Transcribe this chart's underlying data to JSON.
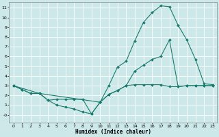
{
  "xlabel": "Humidex (Indice chaleur)",
  "bg_color": "#cce8e8",
  "line_color": "#1a7a6e",
  "grid_color": "#b0d8d8",
  "xlim": [
    -0.5,
    23.5
  ],
  "ylim": [
    -0.8,
    11.6
  ],
  "xticks": [
    0,
    1,
    2,
    3,
    4,
    5,
    6,
    7,
    8,
    9,
    10,
    11,
    12,
    13,
    14,
    15,
    16,
    17,
    18,
    19,
    20,
    21,
    22,
    23
  ],
  "yticks": [
    0,
    1,
    2,
    3,
    4,
    5,
    6,
    7,
    8,
    9,
    10,
    11
  ],
  "ytick_labels": [
    "-0",
    "1",
    "2",
    "3",
    "4",
    "5",
    "6",
    "7",
    "8",
    "9",
    "10",
    "11"
  ],
  "top_x": [
    0,
    1,
    2,
    3,
    4,
    5,
    6,
    7,
    8,
    9,
    10,
    11,
    12,
    13,
    14,
    15,
    16,
    17,
    18,
    19,
    20,
    21,
    22,
    23
  ],
  "top_y": [
    3.0,
    2.6,
    2.2,
    2.2,
    1.5,
    1.0,
    0.8,
    0.6,
    0.3,
    0.1,
    1.3,
    3.0,
    4.9,
    5.5,
    7.6,
    9.5,
    10.5,
    11.2,
    11.1,
    9.2,
    7.7,
    5.7,
    3.2,
    3.1
  ],
  "bot_x": [
    0,
    1,
    2,
    3,
    4,
    5,
    6,
    7,
    8,
    9,
    10,
    11,
    12,
    13,
    14,
    15,
    16,
    17,
    18,
    19,
    20,
    21,
    22,
    23
  ],
  "bot_y": [
    3.0,
    2.6,
    2.2,
    2.2,
    1.5,
    1.6,
    1.6,
    1.6,
    1.6,
    0.1,
    1.3,
    2.1,
    2.5,
    3.0,
    3.1,
    3.1,
    3.1,
    3.1,
    2.9,
    2.9,
    3.0,
    3.0,
    3.0,
    3.0
  ],
  "mid_x": [
    0,
    3,
    10,
    11,
    12,
    13,
    14,
    15,
    16,
    17,
    18,
    19,
    20,
    21,
    22,
    23
  ],
  "mid_y": [
    3.0,
    2.2,
    1.3,
    2.1,
    2.5,
    3.0,
    4.5,
    5.1,
    5.7,
    6.0,
    7.7,
    2.9,
    3.0,
    3.0,
    3.0,
    3.0
  ]
}
